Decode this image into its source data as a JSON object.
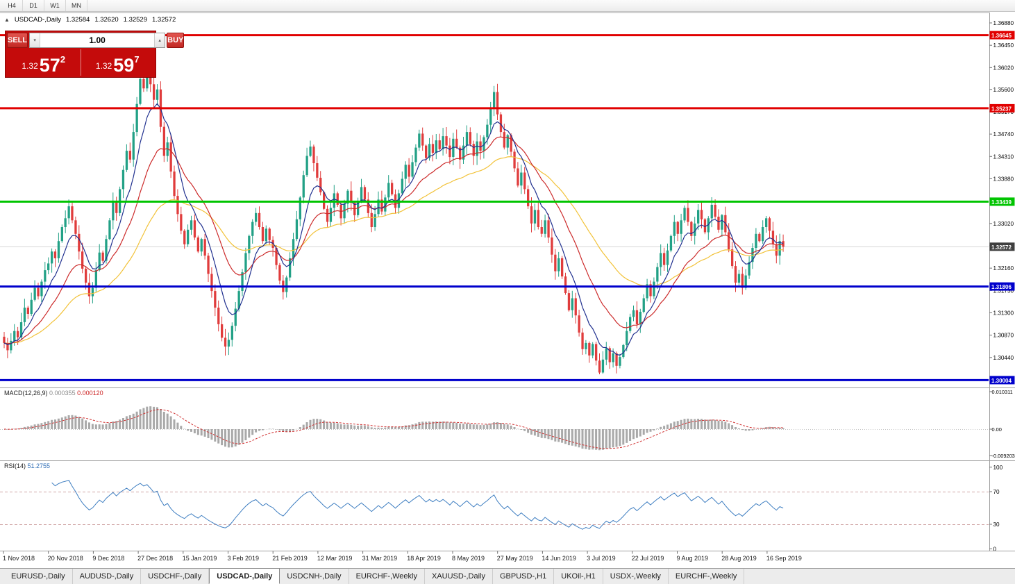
{
  "toolbar": {
    "timeframes": [
      {
        "label": "H4"
      },
      {
        "label": "D1"
      },
      {
        "label": "W1"
      },
      {
        "label": "MN"
      }
    ]
  },
  "chart_header": {
    "collapse_icon": "▲",
    "symbol_title": "USDCAD-,Daily",
    "open": "1.32584",
    "high": "1.32620",
    "low": "1.32529",
    "close": "1.32572"
  },
  "trade_panel": {
    "sell_label": "SELL",
    "buy_label": "BUY",
    "volume": "1.00",
    "volume_down_icon": "▾",
    "volume_up_icon": "▴",
    "sell_price": {
      "small": "1.32",
      "big": "57",
      "sup": "2"
    },
    "buy_price": {
      "small": "1.32",
      "big": "59",
      "sup": "7"
    }
  },
  "price_axis_ticks": [
    "1.36880",
    "1.36450",
    "1.36020",
    "1.35600",
    "1.35170",
    "1.34740",
    "1.34310",
    "1.33880",
    "1.33450",
    "1.33020",
    "1.32590",
    "1.32160",
    "1.31730",
    "1.31300",
    "1.30870",
    "1.30440",
    "1.30010"
  ],
  "levels": [
    {
      "price": 1.36645,
      "label": "1.36645",
      "color": "#e10000"
    },
    {
      "price": 1.35237,
      "label": "1.35237",
      "color": "#e10000"
    },
    {
      "price": 1.33439,
      "label": "1.33439",
      "color": "#00c400"
    },
    {
      "price": 1.31806,
      "label": "1.31806",
      "color": "#0000cc"
    },
    {
      "price": 1.30004,
      "label": "1.30004",
      "color": "#0000cc"
    }
  ],
  "current_price": {
    "value": 1.32572,
    "label": "1.32572",
    "badge_color": "#3f3f3f"
  },
  "macd_panel": {
    "name": "MACD(12,26,9)",
    "value_main": "0.000355",
    "value_signal": "0.000120",
    "axis_top": "0.010311",
    "axis_mid": "0.00",
    "axis_bottom": "-0.009203"
  },
  "rsi_panel": {
    "name": "RSI(14)",
    "value": "51.2755",
    "axis": [
      "100",
      "70",
      "30",
      "0"
    ],
    "upper_level": 70,
    "lower_level": 30
  },
  "date_axis": [
    "1 Nov 2018",
    "20 Nov 2018",
    "9 Dec 2018",
    "27 Dec 2018",
    "15 Jan 2019",
    "3 Feb 2019",
    "21 Feb 2019",
    "12 Mar 2019",
    "31 Mar 2019",
    "18 Apr 2019",
    "8 May 2019",
    "27 May 2019",
    "14 Jun 2019",
    "3 Jul 2019",
    "22 Jul 2019",
    "9 Aug 2019",
    "28 Aug 2019",
    "16 Sep 2019"
  ],
  "tabs": {
    "items": [
      {
        "label": "EURUSD-,Daily",
        "active": false
      },
      {
        "label": "AUDUSD-,Daily",
        "active": false
      },
      {
        "label": "USDCHF-,Daily",
        "active": false
      },
      {
        "label": "USDCAD-,Daily",
        "active": true
      },
      {
        "label": "USDCNH-,Daily",
        "active": false
      },
      {
        "label": "EURCHF-,Weekly",
        "active": false
      },
      {
        "label": "XAUUSD-,Daily",
        "active": false
      },
      {
        "label": "GBPUSD-,H1",
        "active": false
      },
      {
        "label": "UKOil-,H1",
        "active": false
      },
      {
        "label": "USDX-,Weekly",
        "active": false
      },
      {
        "label": "EURCHF-,Weekly",
        "active": false
      }
    ]
  },
  "chart_data": {
    "type": "candlestick",
    "symbol": "USDCAD-",
    "timeframe": "Daily",
    "ohlc_current": {
      "open": 1.32584,
      "high": 1.3262,
      "low": 1.32529,
      "close": 1.32572
    },
    "y_axis_ticks": [
      1.3688,
      1.3645,
      1.3602,
      1.356,
      1.3517,
      1.3474,
      1.3431,
      1.3388,
      1.3345,
      1.3302,
      1.3259,
      1.3216,
      1.3173,
      1.313,
      1.3087,
      1.3044,
      1.3001
    ],
    "x_labels": [
      "1 Nov 2018",
      "20 Nov 2018",
      "9 Dec 2018",
      "27 Dec 2018",
      "15 Jan 2019",
      "3 Feb 2019",
      "21 Feb 2019",
      "12 Mar 2019",
      "31 Mar 2019",
      "18 Apr 2019",
      "8 May 2019",
      "27 May 2019",
      "14 Jun 2019",
      "3 Jul 2019",
      "22 Jul 2019",
      "9 Aug 2019",
      "28 Aug 2019",
      "16 Sep 2019"
    ],
    "horizontal_levels": [
      1.36645,
      1.35237,
      1.33439,
      1.31806,
      1.30004
    ],
    "closes": [
      1.3072,
      1.3058,
      1.3076,
      1.3095,
      1.3083,
      1.3112,
      1.314,
      1.3128,
      1.3155,
      1.3178,
      1.3162,
      1.319,
      1.3212,
      1.3225,
      1.3248,
      1.3235,
      1.3268,
      1.3295,
      1.3312,
      1.3335,
      1.3308,
      1.3282,
      1.3248,
      1.3215,
      1.3188,
      1.3162,
      1.3178,
      1.3212,
      1.3246,
      1.323,
      1.3272,
      1.3308,
      1.3345,
      1.3322,
      1.3368,
      1.3405,
      1.3442,
      1.3425,
      1.3478,
      1.3532,
      1.358,
      1.3562,
      1.3595,
      1.357,
      1.354,
      1.356,
      1.3488,
      1.3432,
      1.3458,
      1.3402,
      1.3355,
      1.332,
      1.3288,
      1.3262,
      1.329,
      1.3308,
      1.3275,
      1.3248,
      1.3272,
      1.324,
      1.3205,
      1.3172,
      1.314,
      1.3108,
      1.3082,
      1.3065,
      1.3078,
      1.3105,
      1.3138,
      1.3172,
      1.3208,
      1.3245,
      1.3278,
      1.3305,
      1.3322,
      1.3295,
      1.3268,
      1.3292,
      1.327,
      1.3255,
      1.3222,
      1.3192,
      1.317,
      1.3198,
      1.3235,
      1.3272,
      1.331,
      1.3352,
      1.3395,
      1.3432,
      1.345,
      1.3418,
      1.339,
      1.3362,
      1.333,
      1.3305,
      1.3332,
      1.336,
      1.3338,
      1.3312,
      1.334,
      1.3365,
      1.3342,
      1.3318,
      1.3345,
      1.3372,
      1.3348,
      1.3322,
      1.3295,
      1.332,
      1.3348,
      1.3325,
      1.3352,
      1.338,
      1.3358,
      1.3332,
      1.336,
      1.3388,
      1.3415,
      1.3392,
      1.342,
      1.3448,
      1.3475,
      1.3452,
      1.3428,
      1.3455,
      1.3438,
      1.3462,
      1.3445,
      1.347,
      1.3452,
      1.343,
      1.3465,
      1.3448,
      1.3425,
      1.3452,
      1.3478,
      1.3455,
      1.3432,
      1.346,
      1.3442,
      1.3468,
      1.3492,
      1.3525,
      1.3555,
      1.3512,
      1.3478,
      1.3448,
      1.3472,
      1.344,
      1.3408,
      1.3375,
      1.34,
      1.3368,
      1.3335,
      1.3302,
      1.3328,
      1.3295,
      1.3282,
      1.3308,
      1.3275,
      1.3242,
      1.321,
      1.3235,
      1.32,
      1.3168,
      1.3135,
      1.3158,
      1.3125,
      1.3092,
      1.306,
      1.3072,
      1.3048,
      1.307,
      1.3038,
      1.3015,
      1.304,
      1.3062,
      1.3035,
      1.3052,
      1.3028,
      1.3045,
      1.3068,
      1.3095,
      1.3122,
      1.3135,
      1.3108,
      1.3132,
      1.3158,
      1.3185,
      1.3162,
      1.319,
      1.3218,
      1.3245,
      1.3222,
      1.325,
      1.3278,
      1.3305,
      1.3282,
      1.3308,
      1.3332,
      1.3305,
      1.3278,
      1.3302,
      1.3328,
      1.331,
      1.3285,
      1.3312,
      1.3338,
      1.3315,
      1.329,
      1.3318,
      1.3285,
      1.3252,
      1.322,
      1.3188,
      1.3205,
      1.3178,
      1.3202,
      1.3228,
      1.3255,
      1.3282,
      1.3268,
      1.3295,
      1.3312,
      1.3288,
      1.3262,
      1.324,
      1.3268,
      1.3257
    ],
    "indicators": {
      "macd": {
        "fast": 12,
        "slow": 26,
        "signal": 9,
        "current_main": 0.000355,
        "current_signal": 0.00012
      },
      "rsi": {
        "period": 14,
        "current": 51.2755,
        "levels": [
          70,
          30
        ]
      },
      "moving_averages": [
        {
          "period": 8,
          "color": "#20308f"
        },
        {
          "period": 20,
          "color": "#cc2a2a"
        },
        {
          "period": 45,
          "color": "#f2c238"
        }
      ]
    },
    "colors": {
      "bull": "#22a186",
      "bear": "#e03c3c",
      "macd_hist": "#a9a9a9",
      "macd_signal": "#d03030",
      "rsi_line": "#3e7ec1"
    }
  }
}
